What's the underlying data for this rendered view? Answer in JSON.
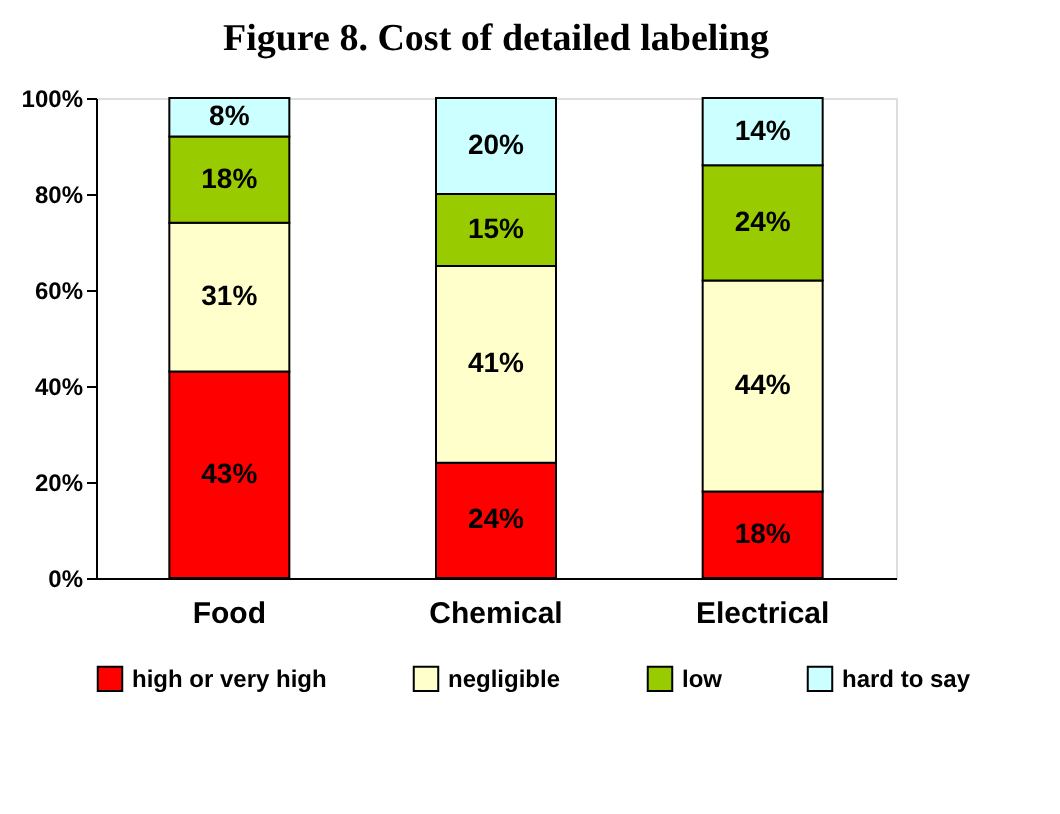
{
  "chart_data": {
    "type": "bar",
    "stacked": true,
    "title": "Figure 8. Cost of detailed labeling",
    "categories": [
      "Food",
      "Chemical",
      "Electrical"
    ],
    "series": [
      {
        "name": "high or very high",
        "color": "#ff0000",
        "values": [
          43,
          24,
          18
        ],
        "value_labels": [
          "43%",
          "24%",
          "18%"
        ]
      },
      {
        "name": "negligible",
        "color": "#ffffcc",
        "values": [
          31,
          41,
          44
        ],
        "value_labels": [
          "31%",
          "41%",
          "44%"
        ]
      },
      {
        "name": "low",
        "color": "#99cc00",
        "values": [
          18,
          15,
          24
        ],
        "value_labels": [
          "18%",
          "15%",
          "24%"
        ]
      },
      {
        "name": "hard to say",
        "color": "#ccffff",
        "values": [
          8,
          20,
          14
        ],
        "value_labels": [
          "8%",
          "20%",
          "14%"
        ]
      }
    ],
    "ylim": [
      0,
      100
    ],
    "yticks": [
      {
        "value": 0,
        "label": "0%"
      },
      {
        "value": 20,
        "label": "20%"
      },
      {
        "value": 40,
        "label": "40%"
      },
      {
        "value": 60,
        "label": "60%"
      },
      {
        "value": 80,
        "label": "80%"
      },
      {
        "value": 100,
        "label": "100%"
      }
    ],
    "grid": false,
    "legend": "bottom"
  }
}
